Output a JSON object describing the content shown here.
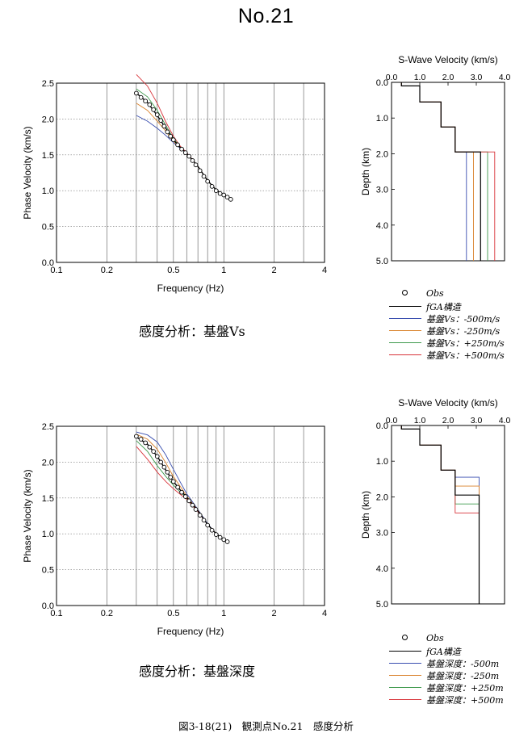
{
  "page": {
    "title": "No.21",
    "caption_vs": "感度分析：基盤Vs",
    "caption_depth": "感度分析：基盤深度",
    "figure_caption": "図3-18(21)　観測点No.21　感度分析"
  },
  "colors": {
    "obs": "#000000",
    "model": "#000000",
    "minus500": "#3a4fb0",
    "minus250": "#d9812a",
    "plus250": "#3f9a4e",
    "plus500": "#d8343a"
  },
  "legend_vs": [
    {
      "key": "obs",
      "label": "Obs",
      "style": "circle"
    },
    {
      "key": "model",
      "label": "fGA構造",
      "style": "line"
    },
    {
      "key": "minus500",
      "label": "基盤Vs：-500m/s",
      "style": "line"
    },
    {
      "key": "minus250",
      "label": "基盤Vs：-250m/s",
      "style": "line"
    },
    {
      "key": "plus250",
      "label": "基盤Vs：+250m/s",
      "style": "line"
    },
    {
      "key": "plus500",
      "label": "基盤Vs：+500m/s",
      "style": "line"
    }
  ],
  "legend_depth": [
    {
      "key": "obs",
      "label": "Obs",
      "style": "circle"
    },
    {
      "key": "model",
      "label": "fGA構造",
      "style": "line"
    },
    {
      "key": "minus500",
      "label": "基盤深度：-500m",
      "style": "line"
    },
    {
      "key": "minus250",
      "label": "基盤深度：-250m",
      "style": "line"
    },
    {
      "key": "plus250",
      "label": "基盤深度：+250m",
      "style": "line"
    },
    {
      "key": "plus500",
      "label": "基盤深度：+500m",
      "style": "line"
    }
  ],
  "chart_data": [
    {
      "id": "disp_vs",
      "type": "scatter",
      "xlabel": "Frequency (Hz)",
      "ylabel": "Phase Velocity (km/s)",
      "xscale": "log",
      "xlim": [
        0.1,
        4
      ],
      "ylim": [
        0,
        2.5
      ],
      "xticks": [
        0.1,
        0.2,
        0.5,
        1,
        2,
        4
      ],
      "xtick_labels": [
        "0.1",
        "0.2",
        "0.5",
        "1",
        "2",
        "4"
      ],
      "yticks": [
        0,
        0.5,
        1.0,
        1.5,
        2.0,
        2.5
      ],
      "ytick_labels": [
        "0.0",
        "0.5",
        "1.0",
        "1.5",
        "2.0",
        "2.5"
      ],
      "grid": true,
      "obs": {
        "x": [
          0.3,
          0.32,
          0.34,
          0.36,
          0.38,
          0.4,
          0.42,
          0.44,
          0.46,
          0.48,
          0.5,
          0.53,
          0.56,
          0.59,
          0.62,
          0.65,
          0.68,
          0.72,
          0.76,
          0.8,
          0.85,
          0.9,
          0.95,
          1.0,
          1.05,
          1.1
        ],
        "y": [
          2.36,
          2.3,
          2.25,
          2.2,
          2.13,
          2.06,
          1.98,
          1.9,
          1.82,
          1.76,
          1.71,
          1.64,
          1.58,
          1.53,
          1.48,
          1.42,
          1.36,
          1.28,
          1.2,
          1.13,
          1.06,
          1.0,
          0.96,
          0.94,
          0.91,
          0.88
        ]
      },
      "series": [
        {
          "key": "model",
          "x": [
            0.3,
            0.35,
            0.4,
            0.45,
            0.5,
            0.55,
            0.6,
            0.7,
            0.8,
            0.9,
            1.0,
            1.1
          ],
          "y": [
            2.36,
            2.23,
            2.05,
            1.87,
            1.71,
            1.6,
            1.52,
            1.34,
            1.14,
            1.01,
            0.94,
            0.88
          ]
        },
        {
          "key": "minus500",
          "x": [
            0.3,
            0.35,
            0.4,
            0.45,
            0.5,
            0.55,
            0.6,
            0.7,
            0.8,
            0.9,
            1.0,
            1.1
          ],
          "y": [
            2.05,
            1.97,
            1.87,
            1.77,
            1.67,
            1.59,
            1.52,
            1.34,
            1.14,
            1.01,
            0.94,
            0.88
          ]
        },
        {
          "key": "minus250",
          "x": [
            0.3,
            0.35,
            0.4,
            0.45,
            0.5,
            0.55,
            0.6,
            0.7,
            0.8,
            0.9,
            1.0,
            1.1
          ],
          "y": [
            2.22,
            2.12,
            1.97,
            1.83,
            1.69,
            1.6,
            1.52,
            1.34,
            1.14,
            1.01,
            0.94,
            0.88
          ]
        },
        {
          "key": "plus250",
          "x": [
            0.3,
            0.35,
            0.4,
            0.45,
            0.5,
            0.55,
            0.6,
            0.7,
            0.8,
            0.9,
            1.0,
            1.1
          ],
          "y": [
            2.42,
            2.31,
            2.12,
            1.91,
            1.73,
            1.61,
            1.52,
            1.34,
            1.14,
            1.01,
            0.94,
            0.88
          ]
        },
        {
          "key": "plus500",
          "x": [
            0.3,
            0.35,
            0.4,
            0.45,
            0.5,
            0.55,
            0.6,
            0.7,
            0.8,
            0.9,
            1.0,
            1.1
          ],
          "y": [
            2.62,
            2.46,
            2.22,
            1.96,
            1.76,
            1.62,
            1.53,
            1.34,
            1.14,
            1.01,
            0.94,
            0.88
          ]
        }
      ]
    },
    {
      "id": "profile_vs",
      "type": "line",
      "title": "S-Wave Velocity (km/s)",
      "ylabel": "Depth (km)",
      "xlim": [
        0,
        4
      ],
      "ylim": [
        0,
        5
      ],
      "y_inverted": true,
      "x_axis_position": "top",
      "xticks": [
        0,
        1,
        2,
        3,
        4
      ],
      "xtick_labels": [
        "0.0",
        "1.0",
        "2.0",
        "3.0",
        "4.0"
      ],
      "yticks": [
        0,
        1,
        2,
        3,
        4,
        5
      ],
      "ytick_labels": [
        "0.0",
        "1.0",
        "2.0",
        "3.0",
        "4.0",
        "5.0"
      ],
      "series": [
        {
          "key": "model",
          "velocity": [
            0.35,
            1.0,
            1.75,
            2.25,
            3.15
          ],
          "bottom_depth": [
            0.1,
            0.55,
            1.25,
            1.95,
            5.0
          ]
        },
        {
          "key": "minus500",
          "velocity": [
            0.35,
            1.0,
            1.75,
            2.25,
            2.65
          ],
          "bottom_depth": [
            0.1,
            0.55,
            1.25,
            1.95,
            5.0
          ]
        },
        {
          "key": "minus250",
          "velocity": [
            0.35,
            1.0,
            1.75,
            2.25,
            2.9
          ],
          "bottom_depth": [
            0.1,
            0.55,
            1.25,
            1.95,
            5.0
          ]
        },
        {
          "key": "plus250",
          "velocity": [
            0.35,
            1.0,
            1.75,
            2.25,
            3.4
          ],
          "bottom_depth": [
            0.1,
            0.55,
            1.25,
            1.95,
            5.0
          ]
        },
        {
          "key": "plus500",
          "velocity": [
            0.35,
            1.0,
            1.75,
            2.25,
            3.65
          ],
          "bottom_depth": [
            0.1,
            0.55,
            1.25,
            1.95,
            5.0
          ]
        }
      ]
    },
    {
      "id": "disp_depth",
      "type": "scatter",
      "xlabel": "Frequency (Hz)",
      "ylabel": "Phase Velocity (km/s)",
      "xscale": "log",
      "xlim": [
        0.1,
        4
      ],
      "ylim": [
        0,
        2.5
      ],
      "xticks": [
        0.1,
        0.2,
        0.5,
        1,
        2,
        4
      ],
      "xtick_labels": [
        "0.1",
        "0.2",
        "0.5",
        "1",
        "2",
        "4"
      ],
      "yticks": [
        0,
        0.5,
        1.0,
        1.5,
        2.0,
        2.5
      ],
      "ytick_labels": [
        "0.0",
        "0.5",
        "1.0",
        "1.5",
        "2.0",
        "2.5"
      ],
      "grid": true,
      "obs": {
        "x": [
          0.3,
          0.32,
          0.34,
          0.36,
          0.38,
          0.4,
          0.42,
          0.44,
          0.46,
          0.48,
          0.5,
          0.53,
          0.56,
          0.59,
          0.62,
          0.65,
          0.68,
          0.72,
          0.76,
          0.8,
          0.85,
          0.9,
          0.95,
          1.0,
          1.05
        ],
        "y": [
          2.36,
          2.32,
          2.27,
          2.21,
          2.15,
          2.08,
          2.0,
          1.93,
          1.86,
          1.79,
          1.73,
          1.65,
          1.58,
          1.52,
          1.46,
          1.4,
          1.34,
          1.26,
          1.19,
          1.12,
          1.05,
          0.99,
          0.95,
          0.92,
          0.89
        ]
      },
      "series": [
        {
          "key": "model",
          "x": [
            0.3,
            0.35,
            0.4,
            0.45,
            0.5,
            0.55,
            0.6,
            0.7,
            0.8,
            0.9,
            1.0,
            1.05
          ],
          "y": [
            2.35,
            2.25,
            2.08,
            1.89,
            1.73,
            1.61,
            1.51,
            1.32,
            1.13,
            1.0,
            0.92,
            0.89
          ]
        },
        {
          "key": "minus500",
          "x": [
            0.3,
            0.35,
            0.4,
            0.45,
            0.5,
            0.55,
            0.6,
            0.7,
            0.8,
            0.9,
            1.0,
            1.05
          ],
          "y": [
            2.42,
            2.38,
            2.28,
            2.1,
            1.9,
            1.72,
            1.56,
            1.34,
            1.14,
            1.0,
            0.92,
            0.89
          ]
        },
        {
          "key": "minus250",
          "x": [
            0.3,
            0.35,
            0.4,
            0.45,
            0.5,
            0.55,
            0.6,
            0.7,
            0.8,
            0.9,
            1.0,
            1.05
          ],
          "y": [
            2.39,
            2.32,
            2.18,
            1.99,
            1.8,
            1.66,
            1.53,
            1.33,
            1.13,
            1.0,
            0.92,
            0.89
          ]
        },
        {
          "key": "plus250",
          "x": [
            0.3,
            0.35,
            0.4,
            0.45,
            0.5,
            0.55,
            0.6,
            0.7,
            0.8,
            0.9,
            1.0,
            1.05
          ],
          "y": [
            2.3,
            2.15,
            1.95,
            1.8,
            1.68,
            1.58,
            1.5,
            1.32,
            1.13,
            1.0,
            0.92,
            0.89
          ]
        },
        {
          "key": "plus500",
          "x": [
            0.3,
            0.35,
            0.4,
            0.45,
            0.5,
            0.55,
            0.6,
            0.7,
            0.8,
            0.9,
            1.0,
            1.05
          ],
          "y": [
            2.22,
            2.04,
            1.86,
            1.73,
            1.63,
            1.55,
            1.48,
            1.31,
            1.13,
            1.0,
            0.92,
            0.89
          ]
        }
      ]
    },
    {
      "id": "profile_depth",
      "type": "line",
      "title": "S-Wave Velocity (km/s)",
      "ylabel": "Depth (km)",
      "xlim": [
        0,
        4
      ],
      "ylim": [
        0,
        5
      ],
      "y_inverted": true,
      "x_axis_position": "top",
      "xticks": [
        0,
        1,
        2,
        3,
        4
      ],
      "xtick_labels": [
        "0.0",
        "1.0",
        "2.0",
        "3.0",
        "4.0"
      ],
      "yticks": [
        0,
        1,
        2,
        3,
        4,
        5
      ],
      "ytick_labels": [
        "0.0",
        "1.0",
        "2.0",
        "3.0",
        "4.0",
        "5.0"
      ],
      "series": [
        {
          "key": "model",
          "velocity": [
            0.35,
            1.0,
            1.75,
            2.25,
            3.1
          ],
          "bottom_depth": [
            0.1,
            0.55,
            1.25,
            1.95,
            5.0
          ]
        },
        {
          "key": "minus500",
          "velocity": [
            0.35,
            1.0,
            1.75,
            2.25,
            3.1
          ],
          "bottom_depth": [
            0.1,
            0.55,
            1.25,
            1.45,
            5.0
          ]
        },
        {
          "key": "minus250",
          "velocity": [
            0.35,
            1.0,
            1.75,
            2.25,
            3.1
          ],
          "bottom_depth": [
            0.1,
            0.55,
            1.25,
            1.7,
            5.0
          ]
        },
        {
          "key": "plus250",
          "velocity": [
            0.35,
            1.0,
            1.75,
            2.25,
            3.1
          ],
          "bottom_depth": [
            0.1,
            0.55,
            1.25,
            2.2,
            5.0
          ]
        },
        {
          "key": "plus500",
          "velocity": [
            0.35,
            1.0,
            1.75,
            2.25,
            3.1
          ],
          "bottom_depth": [
            0.1,
            0.55,
            1.25,
            2.45,
            5.0
          ]
        }
      ]
    }
  ]
}
